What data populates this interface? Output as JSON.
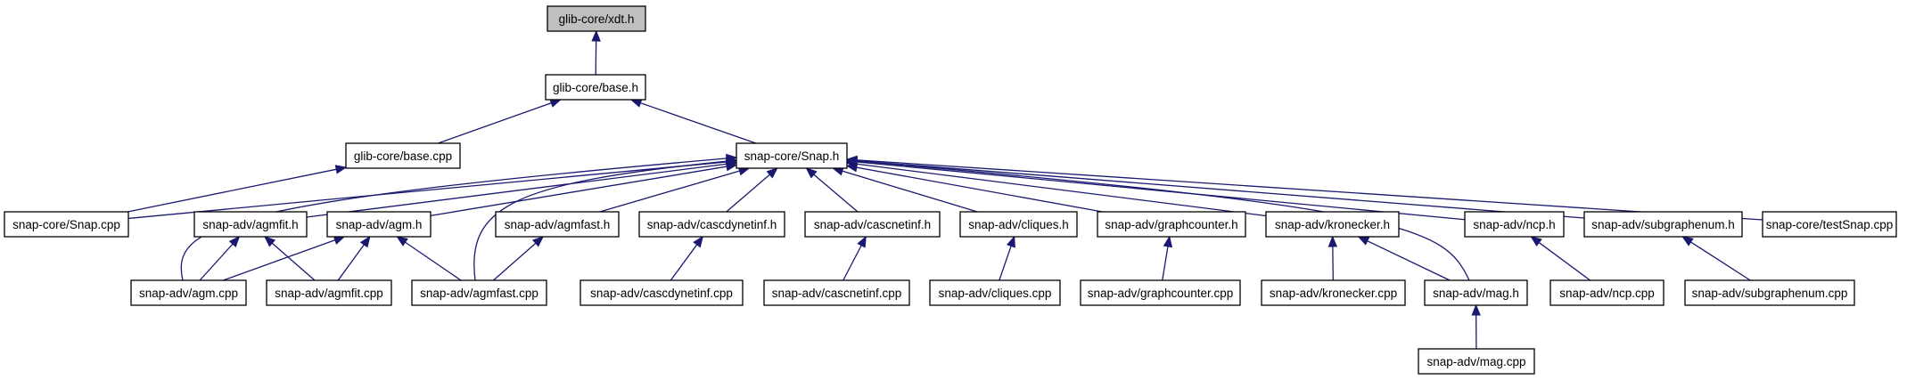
{
  "colors": {
    "edge": "#191970",
    "node_fill": "#ffffff",
    "highlight_fill": "#bfbfbf",
    "node_border": "#000000"
  },
  "nodes": [
    {
      "id": "xdt_h",
      "label": "glib-core/xdt.h",
      "highlighted": true
    },
    {
      "id": "base_h",
      "label": "glib-core/base.h"
    },
    {
      "id": "base_cpp",
      "label": "glib-core/base.cpp"
    },
    {
      "id": "snap_h",
      "label": "snap-core/Snap.h"
    },
    {
      "id": "snap_cpp",
      "label": "snap-core/Snap.cpp"
    },
    {
      "id": "agmfit_h",
      "label": "snap-adv/agmfit.h"
    },
    {
      "id": "agm_h",
      "label": "snap-adv/agm.h"
    },
    {
      "id": "agmfast_h",
      "label": "snap-adv/agmfast.h"
    },
    {
      "id": "cascdynetinf_h",
      "label": "snap-adv/cascdynetinf.h"
    },
    {
      "id": "cascnetinf_h",
      "label": "snap-adv/cascnetinf.h"
    },
    {
      "id": "cliques_h",
      "label": "snap-adv/cliques.h"
    },
    {
      "id": "graphcounter_h",
      "label": "snap-adv/graphcounter.h"
    },
    {
      "id": "kronecker_h",
      "label": "snap-adv/kronecker.h"
    },
    {
      "id": "ncp_h",
      "label": "snap-adv/ncp.h"
    },
    {
      "id": "subgraphenum_h",
      "label": "snap-adv/subgraphenum.h"
    },
    {
      "id": "testsnap_cpp",
      "label": "snap-core/testSnap.cpp"
    },
    {
      "id": "agm_cpp",
      "label": "snap-adv/agm.cpp"
    },
    {
      "id": "agmfit_cpp",
      "label": "snap-adv/agmfit.cpp"
    },
    {
      "id": "agmfast_cpp",
      "label": "snap-adv/agmfast.cpp"
    },
    {
      "id": "cascdynetinf_cpp",
      "label": "snap-adv/cascdynetinf.cpp"
    },
    {
      "id": "cascnetinf_cpp",
      "label": "snap-adv/cascnetinf.cpp"
    },
    {
      "id": "cliques_cpp",
      "label": "snap-adv/cliques.cpp"
    },
    {
      "id": "graphcounter_cpp",
      "label": "snap-adv/graphcounter.cpp"
    },
    {
      "id": "kronecker_cpp",
      "label": "snap-adv/kronecker.cpp"
    },
    {
      "id": "mag_h",
      "label": "snap-adv/mag.h"
    },
    {
      "id": "ncp_cpp",
      "label": "snap-adv/ncp.cpp"
    },
    {
      "id": "subgraphenum_cpp",
      "label": "snap-adv/subgraphenum.cpp"
    },
    {
      "id": "mag_cpp",
      "label": "snap-adv/mag.cpp"
    }
  ],
  "edges": [
    {
      "from": "base_h",
      "to": "xdt_h"
    },
    {
      "from": "base_cpp",
      "to": "base_h"
    },
    {
      "from": "snap_h",
      "to": "base_h"
    },
    {
      "from": "snap_cpp",
      "to": "base_cpp"
    },
    {
      "from": "snap_cpp",
      "to": "snap_h"
    },
    {
      "from": "agmfit_h",
      "to": "snap_h"
    },
    {
      "from": "agm_h",
      "to": "snap_h"
    },
    {
      "from": "agmfast_h",
      "to": "snap_h"
    },
    {
      "from": "cascdynetinf_h",
      "to": "snap_h"
    },
    {
      "from": "cascnetinf_h",
      "to": "snap_h"
    },
    {
      "from": "cliques_h",
      "to": "snap_h"
    },
    {
      "from": "graphcounter_h",
      "to": "snap_h"
    },
    {
      "from": "kronecker_h",
      "to": "snap_h"
    },
    {
      "from": "ncp_h",
      "to": "snap_h"
    },
    {
      "from": "subgraphenum_h",
      "to": "snap_h"
    },
    {
      "from": "testsnap_cpp",
      "to": "snap_h"
    },
    {
      "from": "agm_cpp",
      "to": "snap_h"
    },
    {
      "from": "agmfast_cpp",
      "to": "snap_h"
    },
    {
      "from": "mag_h",
      "to": "snap_h"
    },
    {
      "from": "agm_cpp",
      "to": "agmfit_h"
    },
    {
      "from": "agm_cpp",
      "to": "agm_h"
    },
    {
      "from": "agmfit_cpp",
      "to": "agmfit_h"
    },
    {
      "from": "agmfit_cpp",
      "to": "agm_h"
    },
    {
      "from": "agmfast_cpp",
      "to": "agm_h"
    },
    {
      "from": "agmfast_cpp",
      "to": "agmfast_h"
    },
    {
      "from": "cascdynetinf_cpp",
      "to": "cascdynetinf_h"
    },
    {
      "from": "cascnetinf_cpp",
      "to": "cascnetinf_h"
    },
    {
      "from": "cliques_cpp",
      "to": "cliques_h"
    },
    {
      "from": "graphcounter_cpp",
      "to": "graphcounter_h"
    },
    {
      "from": "kronecker_cpp",
      "to": "kronecker_h"
    },
    {
      "from": "mag_h",
      "to": "kronecker_h"
    },
    {
      "from": "ncp_cpp",
      "to": "ncp_h"
    },
    {
      "from": "subgraphenum_cpp",
      "to": "subgraphenum_h"
    },
    {
      "from": "mag_cpp",
      "to": "mag_h"
    }
  ]
}
